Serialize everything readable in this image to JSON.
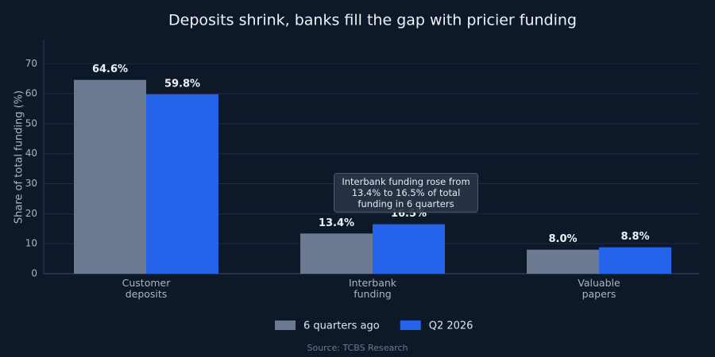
{
  "chart_data": {
    "type": "bar",
    "title": "Deposits shrink, banks fill the gap with pricier funding",
    "y_label": "Share of total funding (%)",
    "categories": [
      "Customer deposits",
      "Interbank funding",
      "Valuable papers"
    ],
    "series": [
      {
        "name": "6 quarters ago",
        "color": "#6b7a90",
        "values": [
          64.6,
          13.4,
          8.0
        ],
        "value_labels": [
          "64.6%",
          "13.4%",
          "8.0%"
        ]
      },
      {
        "name": "Q2 2026",
        "color": "#2563eb",
        "values": [
          59.8,
          16.5,
          8.8
        ],
        "value_labels": [
          "59.8%",
          "16.5%",
          "8.8%"
        ]
      }
    ],
    "ylim": [
      0,
      78
    ],
    "yticks": [
      0,
      10,
      20,
      30,
      40,
      50,
      60,
      70
    ],
    "grid": true,
    "annotation": "Interbank funding rose from 13.4% to 16.5% of total funding in 6 quarters",
    "source": "Source: TCBS Research"
  }
}
